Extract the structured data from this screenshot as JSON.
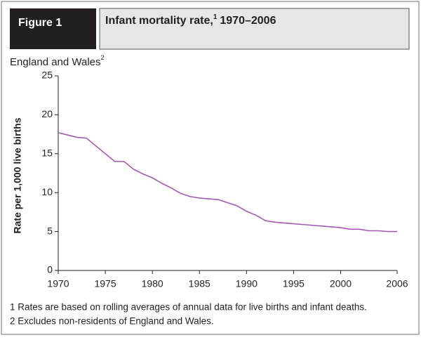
{
  "chart_data": {
    "type": "line",
    "figure_label": "Figure 1",
    "title": "Infant mortality rate,",
    "title_note": "1",
    "title_period": "1970–2006",
    "subtitle": "England and Wales",
    "subtitle_note": "2",
    "y_label": "Rate per 1,000 live births",
    "footnotes": [
      "1 Rates are based on rolling averages of annual data for live births and infant deaths.",
      "2 Excludes non-residents of England and Wales."
    ],
    "x": [
      1970,
      1971,
      1972,
      1973,
      1974,
      1975,
      1976,
      1977,
      1978,
      1979,
      1980,
      1981,
      1982,
      1983,
      1984,
      1985,
      1986,
      1987,
      1988,
      1989,
      1990,
      1991,
      1992,
      1993,
      1994,
      1995,
      1996,
      1997,
      1998,
      1999,
      2000,
      2001,
      2002,
      2003,
      2004,
      2005,
      2006
    ],
    "values": [
      17.7,
      17.4,
      17.1,
      17.0,
      16.0,
      15.0,
      14.0,
      14.0,
      13.0,
      12.4,
      11.9,
      11.2,
      10.6,
      9.9,
      9.5,
      9.3,
      9.2,
      9.1,
      8.7,
      8.3,
      7.6,
      7.1,
      6.4,
      6.2,
      6.1,
      6.0,
      5.9,
      5.8,
      5.7,
      5.6,
      5.5,
      5.3,
      5.3,
      5.1,
      5.1,
      5.0,
      5.0
    ],
    "color": "#a25bb4",
    "xlim": [
      1970,
      2006
    ],
    "xticks": [
      1970,
      1975,
      1980,
      1985,
      1990,
      1995,
      2000,
      2006
    ],
    "ylim": [
      0,
      25
    ],
    "yticks": [
      0,
      5,
      10,
      15,
      20,
      25
    ]
  }
}
